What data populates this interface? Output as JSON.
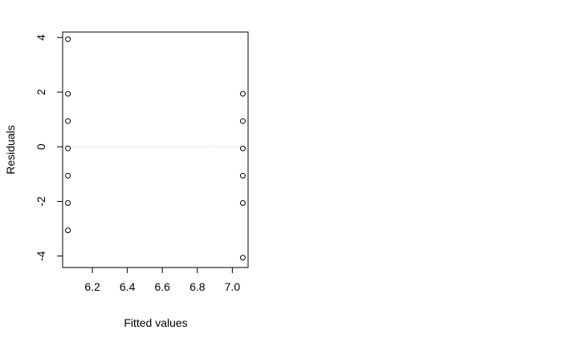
{
  "chart_data": {
    "type": "scatter",
    "title": "",
    "xlabel": "Fitted values",
    "ylabel": "Residuals",
    "xlim": [
      6.03,
      7.09
    ],
    "ylim": [
      -4.42,
      4.2
    ],
    "x_ticks": [
      6.2,
      6.4,
      6.6,
      6.8,
      7.0
    ],
    "x_tick_labels": [
      "6.2",
      "6.4",
      "6.6",
      "6.8",
      "7.0"
    ],
    "y_ticks": [
      -4,
      -2,
      0,
      2,
      4
    ],
    "y_tick_labels": [
      "-4",
      "-2",
      "0",
      "2",
      "4"
    ],
    "reference_line_y": 0,
    "grid": false,
    "series": [
      {
        "marker": "open-circle",
        "points": [
          {
            "x": 6.06,
            "y": 3.94
          },
          {
            "x": 6.06,
            "y": 1.94
          },
          {
            "x": 6.06,
            "y": 0.94
          },
          {
            "x": 6.06,
            "y": -0.06
          },
          {
            "x": 6.06,
            "y": -1.06
          },
          {
            "x": 6.06,
            "y": -2.06
          },
          {
            "x": 6.06,
            "y": -3.06
          },
          {
            "x": 7.06,
            "y": 1.94
          },
          {
            "x": 7.06,
            "y": 0.94
          },
          {
            "x": 7.06,
            "y": -0.06
          },
          {
            "x": 7.06,
            "y": -1.06
          },
          {
            "x": 7.06,
            "y": -2.06
          },
          {
            "x": 7.06,
            "y": -4.06
          }
        ]
      }
    ]
  }
}
